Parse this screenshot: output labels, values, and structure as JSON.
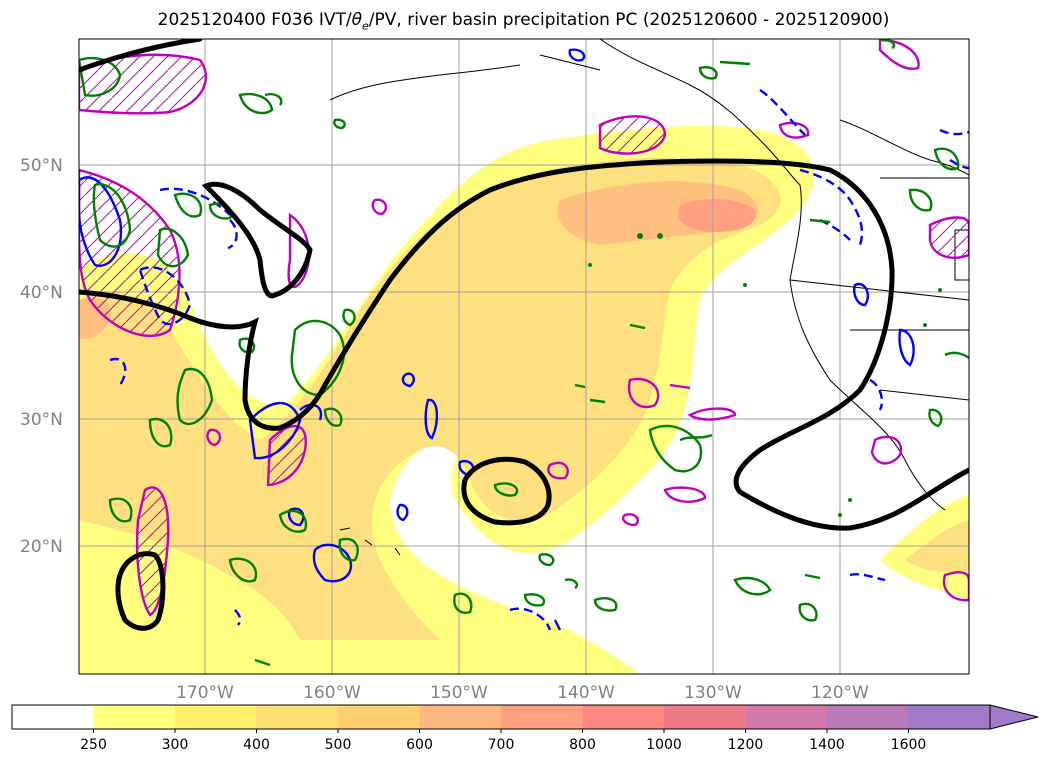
{
  "title": {
    "date": "2025120400",
    "forecast": "F036",
    "ivt_label": "IVT/",
    "theta": "θ",
    "theta_sub": "e",
    "rest": "/PV, river basin precipitation PC (2025120600 - 2025120900)"
  },
  "lat_labels": [
    "50°N",
    "40°N",
    "30°N",
    "20°N"
  ],
  "lon_labels": [
    "170°W",
    "160°W",
    "150°W",
    "140°W",
    "130°W",
    "120°W"
  ],
  "colorbar": {
    "ticks": [
      "250",
      "300",
      "400",
      "500",
      "600",
      "700",
      "800",
      "1000",
      "1200",
      "1400",
      "1600"
    ],
    "colors": [
      "#ffffff",
      "#ffff80",
      "#fff06e",
      "#ffe070",
      "#ffd070",
      "#ffb880",
      "#ffa080",
      "#ff8880",
      "#ee7a8a",
      "#d47aaa",
      "#b87ab8",
      "#a07ac8"
    ],
    "extend": "max"
  },
  "legend_colors": {
    "ivt_fill": "#ffff80",
    "ivt_mid": "#ffe080",
    "ivt_core": "#ffa080",
    "coast": "#000000",
    "theta_e_black": "#000000",
    "pv_magenta": "#c000c0",
    "blue": "#0000ff",
    "green": "#008000"
  }
}
